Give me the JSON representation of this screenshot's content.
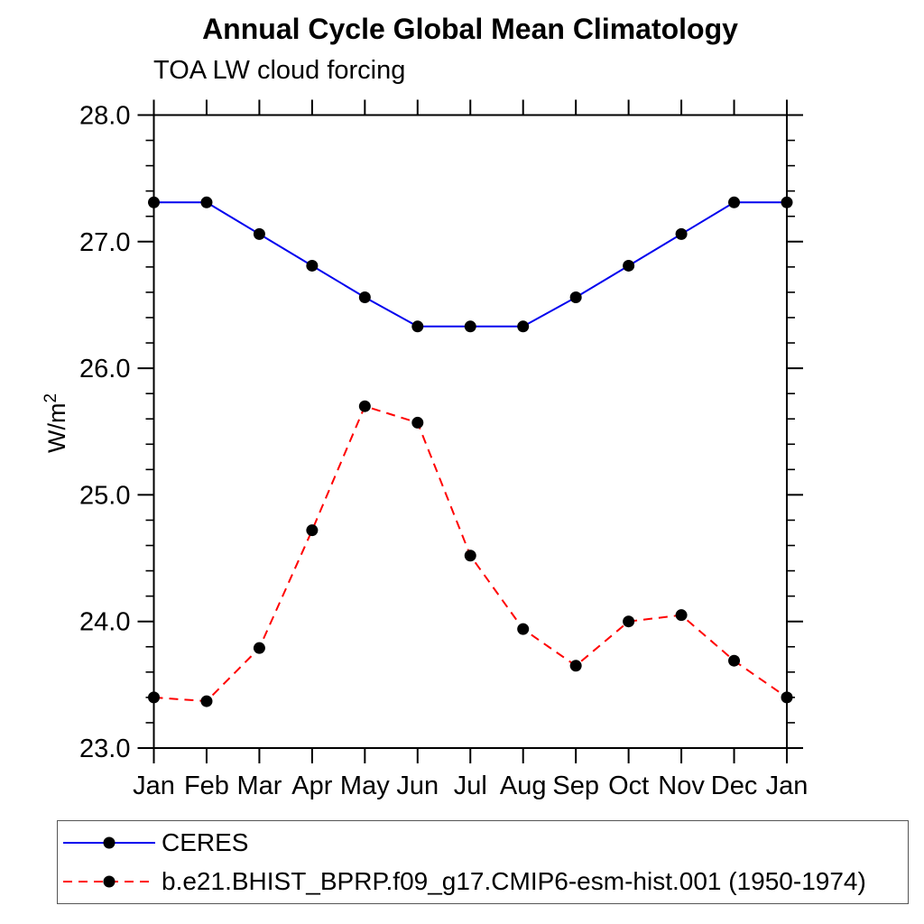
{
  "chart_data": {
    "type": "line",
    "title": "Annual Cycle Global Mean Climatology",
    "subtitle": "TOA LW cloud forcing",
    "ylabel_base": "W/m",
    "ylabel_sup": "2",
    "categories": [
      "Jan",
      "Feb",
      "Mar",
      "Apr",
      "May",
      "Jun",
      "Jul",
      "Aug",
      "Sep",
      "Oct",
      "Nov",
      "Dec",
      "Jan"
    ],
    "series": [
      {
        "name": "CERES",
        "color": "#0000ee",
        "line_style": "solid",
        "marker": "filled-circle",
        "marker_color": "#000000",
        "values": [
          27.31,
          27.31,
          27.06,
          26.81,
          26.56,
          26.33,
          26.33,
          26.33,
          26.56,
          26.81,
          27.06,
          27.31,
          27.31
        ]
      },
      {
        "name": "b.e21.BHIST_BPRP.f09_g17.CMIP6-esm-hist.001 (1950-1974)",
        "color": "#ff0000",
        "line_style": "dashed",
        "marker": "filled-circle",
        "marker_color": "#000000",
        "values": [
          23.4,
          23.37,
          23.79,
          24.72,
          25.7,
          25.57,
          24.52,
          23.94,
          23.65,
          24.0,
          24.05,
          23.69,
          23.4
        ]
      }
    ],
    "ylim": [
      23.0,
      28.0
    ],
    "yticks": [
      23.0,
      24.0,
      25.0,
      26.0,
      27.0,
      28.0
    ],
    "ytick_decimals": 1,
    "y_minor_step": 0.2,
    "grid": "off",
    "legend_position": "below-left"
  }
}
